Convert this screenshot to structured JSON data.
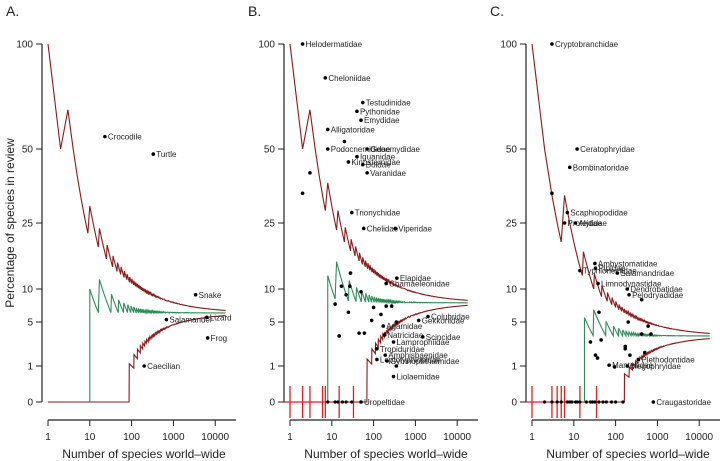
{
  "chart_data": [
    {
      "panel": "A.",
      "type": "scatter",
      "xlabel": "Number of species world–wide",
      "ylabel": "Percentage of species in review",
      "xscale": "log",
      "x_ticks": [
        "1",
        "10",
        "100",
        "1000",
        "10000"
      ],
      "y_ticks": [
        "0",
        "1",
        "5",
        "10",
        "25",
        "50",
        "100"
      ],
      "converge": 6.2,
      "green_start": 10,
      "lower_start": 55,
      "points": [
        {
          "label": "Crocodile",
          "x": 23,
          "y": 55
        },
        {
          "label": "Turtle",
          "x": 330,
          "y": 48
        },
        {
          "label": "Snake",
          "x": 3400,
          "y": 9
        },
        {
          "label": "Salamander",
          "x": 680,
          "y": 5.3
        },
        {
          "label": "Lizard",
          "x": 6300,
          "y": 5.6
        },
        {
          "label": "Frog",
          "x": 6600,
          "y": 3.2
        },
        {
          "label": "Caecilian",
          "x": 200,
          "y": 1
        }
      ]
    },
    {
      "panel": "B.",
      "type": "scatter",
      "xlabel": "Number of species world–wide",
      "xscale": "log",
      "x_ticks": [
        "1",
        "10",
        "100",
        "1000",
        "10000"
      ],
      "y_ticks": [
        "0",
        "1",
        "5",
        "10",
        "25",
        "50",
        "100"
      ],
      "converge": 7.7,
      "green_start": 8,
      "lower_start": 45,
      "points": [
        {
          "label": "Helodermatidae",
          "x": 2,
          "y": 100
        },
        {
          "label": "Cheloniidae",
          "x": 7,
          "y": 82
        },
        {
          "label": "Testudinidae",
          "x": 55,
          "y": 70
        },
        {
          "label": "Pythonidae",
          "x": 40,
          "y": 66
        },
        {
          "label": "Emydidae",
          "x": 50,
          "y": 62
        },
        {
          "label": "Alligatoridae",
          "x": 8,
          "y": 58
        },
        {
          "label": "",
          "x": 20,
          "y": 53
        },
        {
          "label": "Podocnemididae",
          "x": 8,
          "y": 50
        },
        {
          "label": "Geoemydidae",
          "x": 70,
          "y": 50
        },
        {
          "label": "Iguanidae",
          "x": 40,
          "y": 47
        },
        {
          "label": "Kinosternidae",
          "x": 25,
          "y": 45
        },
        {
          "label": "Boidae",
          "x": 55,
          "y": 44
        },
        {
          "label": "Varanidae",
          "x": 70,
          "y": 41
        },
        {
          "label": "",
          "x": 3,
          "y": 41
        },
        {
          "label": "",
          "x": 2,
          "y": 34
        },
        {
          "label": "Trionychidae",
          "x": 30,
          "y": 28
        },
        {
          "label": "Chelidae",
          "x": 58,
          "y": 23.5
        },
        {
          "label": "Viperidae",
          "x": 330,
          "y": 23.5
        },
        {
          "label": "Elapidae",
          "x": 360,
          "y": 12
        },
        {
          "label": "Chamaeleonidae",
          "x": 200,
          "y": 11
        },
        {
          "label": "",
          "x": 28,
          "y": 13
        },
        {
          "label": "",
          "x": 17,
          "y": 10.5
        },
        {
          "label": "",
          "x": 27,
          "y": 10.5
        },
        {
          "label": "",
          "x": 50,
          "y": 9.5
        },
        {
          "label": "",
          "x": 22,
          "y": 9
        },
        {
          "label": "",
          "x": 12,
          "y": 7.5
        },
        {
          "label": "",
          "x": 200,
          "y": 7.2
        },
        {
          "label": "",
          "x": 270,
          "y": 7.2
        },
        {
          "label": "",
          "x": 100,
          "y": 7
        },
        {
          "label": "",
          "x": 25,
          "y": 6.3
        },
        {
          "label": "",
          "x": 150,
          "y": 6
        },
        {
          "label": "Colubridae",
          "x": 2000,
          "y": 5.7
        },
        {
          "label": "Gekkonidae",
          "x": 1200,
          "y": 5.2
        },
        {
          "label": "",
          "x": 90,
          "y": 5.2
        },
        {
          "label": "",
          "x": 350,
          "y": 5
        },
        {
          "label": "Agamidae",
          "x": 170,
          "y": 4.5
        },
        {
          "label": "",
          "x": 60,
          "y": 3.7
        },
        {
          "label": "",
          "x": 45,
          "y": 3.7
        },
        {
          "label": "",
          "x": 15,
          "y": 3.4
        },
        {
          "label": "Natricidae",
          "x": 180,
          "y": 3.5
        },
        {
          "label": "Scincidae",
          "x": 1500,
          "y": 3.3
        },
        {
          "label": "Lamprophiidae",
          "x": 300,
          "y": 2.8
        },
        {
          "label": "Tropiduridae",
          "x": 120,
          "y": 2.2
        },
        {
          "label": "Amphisbaenidae",
          "x": 190,
          "y": 1.7
        },
        {
          "label": "Leptotyphlopidae",
          "x": 120,
          "y": 1.4
        },
        {
          "label": "Gymnophthalmidae",
          "x": 210,
          "y": 1.3
        },
        {
          "label": "",
          "x": 350,
          "y": 1
        },
        {
          "label": "Liolaemidae",
          "x": 300,
          "y": 0.5
        },
        {
          "label": "Uropeltidae",
          "x": 50,
          "y": 0
        }
      ],
      "zero_points_x": [
        8,
        12,
        14,
        18,
        22,
        30
      ],
      "red_crosses_x": [
        1,
        2,
        3,
        6,
        7,
        15,
        33
      ]
    },
    {
      "panel": "C.",
      "type": "scatter",
      "xlabel": "Number of species world–wide",
      "xscale": "log",
      "x_ticks": [
        "1",
        "10",
        "100",
        "1000",
        "10000"
      ],
      "y_ticks": [
        "0",
        "1",
        "5",
        "10",
        "25",
        "50",
        "100"
      ],
      "converge": 3.4,
      "green_start": 18,
      "lower_start": 100,
      "points": [
        {
          "label": "Cryptobranchidae",
          "x": 3,
          "y": 100
        },
        {
          "label": "Ceratophryidae",
          "x": 12,
          "y": 50
        },
        {
          "label": "Bombinatoridae",
          "x": 8,
          "y": 43
        },
        {
          "label": "",
          "x": 3,
          "y": 34
        },
        {
          "label": "Scaphiopodidae",
          "x": 7,
          "y": 28
        },
        {
          "label": "Proteidae",
          "x": 6,
          "y": 25
        },
        {
          "label": "Alytidae",
          "x": 11,
          "y": 25
        },
        {
          "label": "Ambystomatidae",
          "x": 32,
          "y": 15
        },
        {
          "label": "Pipidae",
          "x": 33,
          "y": 14
        },
        {
          "label": "Typhlonectidae",
          "x": 14,
          "y": 13.5
        },
        {
          "label": "Salamandridae",
          "x": 110,
          "y": 13
        },
        {
          "label": "Limnodynastidae",
          "x": 38,
          "y": 11
        },
        {
          "label": "Dendrobatidae",
          "x": 190,
          "y": 10
        },
        {
          "label": "Pelodryadidae",
          "x": 210,
          "y": 9
        },
        {
          "label": "",
          "x": 420,
          "y": 8.2
        },
        {
          "label": "",
          "x": 40,
          "y": 6.3
        },
        {
          "label": "",
          "x": 200,
          "y": 5
        },
        {
          "label": "",
          "x": 600,
          "y": 4.5
        },
        {
          "label": "",
          "x": 420,
          "y": 3.6
        },
        {
          "label": "",
          "x": 700,
          "y": 3.6
        },
        {
          "label": "",
          "x": 25,
          "y": 2.8
        },
        {
          "label": "",
          "x": 45,
          "y": 3.0
        },
        {
          "label": "",
          "x": 170,
          "y": 2.4
        },
        {
          "label": "",
          "x": 170,
          "y": 2.2
        },
        {
          "label": "",
          "x": 220,
          "y": 1.7
        },
        {
          "label": "",
          "x": 500,
          "y": 1.9
        },
        {
          "label": "",
          "x": 33,
          "y": 1.7
        },
        {
          "label": "",
          "x": 37,
          "y": 1.5
        },
        {
          "label": "Plethodontidae",
          "x": 350,
          "y": 1.4
        },
        {
          "label": "Mantellidae",
          "x": 70,
          "y": 1.05
        },
        {
          "label": "Megophryidae",
          "x": 190,
          "y": 1
        },
        {
          "label": "",
          "x": 95,
          "y": 0.95
        },
        {
          "label": "Craugastoridae",
          "x": 800,
          "y": 0
        }
      ],
      "zero_points_x": [
        2,
        3,
        4,
        5,
        7,
        8,
        9,
        11,
        12,
        14,
        20,
        25,
        28,
        32,
        40,
        50,
        60,
        80,
        100,
        150
      ],
      "red_crosses_x": [
        1,
        3,
        4,
        5,
        6,
        14,
        35
      ]
    }
  ]
}
